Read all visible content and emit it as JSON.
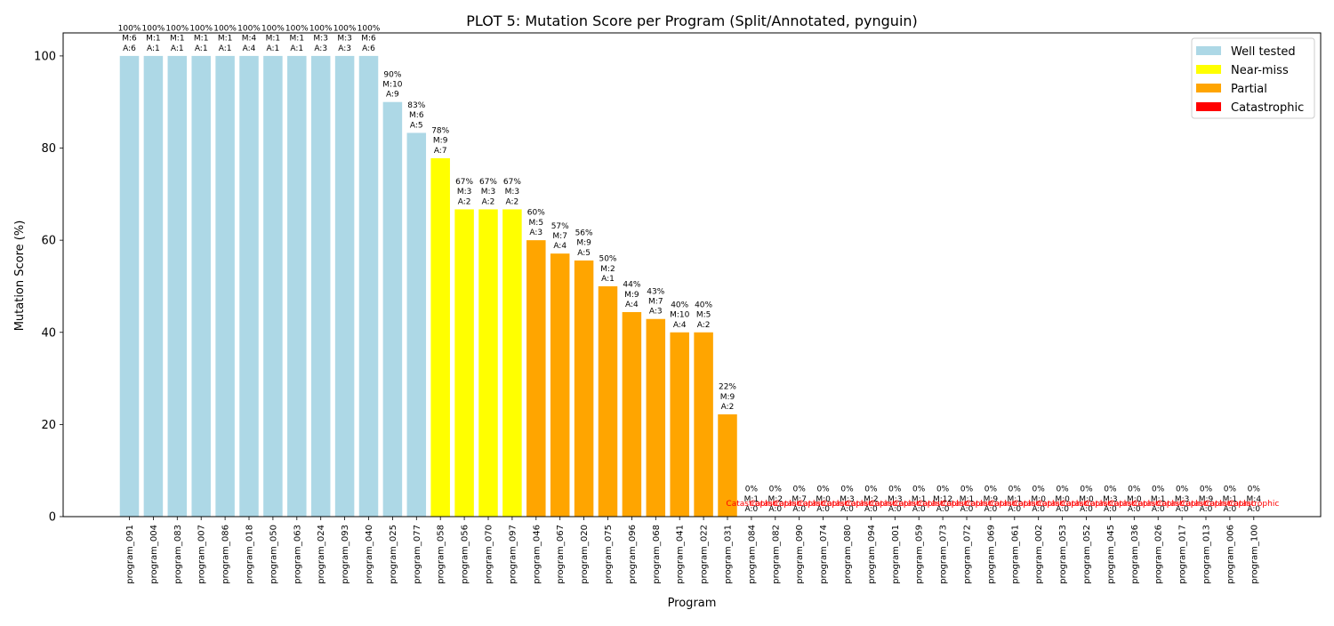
{
  "chart_data": {
    "type": "bar",
    "title": "PLOT 5: Mutation Score per Program (Split/Annotated, pynguin)",
    "xlabel": "Program",
    "ylabel": "Mutation Score (%)",
    "ylim": [
      0,
      105
    ],
    "yticks": [
      0,
      20,
      40,
      60,
      80,
      100
    ],
    "grid": false,
    "legend_position": "top-right",
    "colors": {
      "Well tested": "#add8e6",
      "Near-miss": "#ffff00",
      "Partial": "#ffa500",
      "Catastrophic": "#ff0000",
      "annotation_catastrophic": "#ff0000"
    },
    "legend": [
      "Well tested",
      "Near-miss",
      "Partial",
      "Catastrophic"
    ],
    "bars": [
      {
        "program": "program_091",
        "value": 100,
        "category": "Well tested",
        "label": [
          "100%",
          "M:6",
          "A:6"
        ]
      },
      {
        "program": "program_004",
        "value": 100,
        "category": "Well tested",
        "label": [
          "100%",
          "M:1",
          "A:1"
        ]
      },
      {
        "program": "program_083",
        "value": 100,
        "category": "Well tested",
        "label": [
          "100%",
          "M:1",
          "A:1"
        ]
      },
      {
        "program": "program_007",
        "value": 100,
        "category": "Well tested",
        "label": [
          "100%",
          "M:1",
          "A:1"
        ]
      },
      {
        "program": "program_086",
        "value": 100,
        "category": "Well tested",
        "label": [
          "100%",
          "M:1",
          "A:1"
        ]
      },
      {
        "program": "program_018",
        "value": 100,
        "category": "Well tested",
        "label": [
          "100%",
          "M:4",
          "A:4"
        ]
      },
      {
        "program": "program_050",
        "value": 100,
        "category": "Well tested",
        "label": [
          "100%",
          "M:1",
          "A:1"
        ]
      },
      {
        "program": "program_063",
        "value": 100,
        "category": "Well tested",
        "label": [
          "100%",
          "M:1",
          "A:1"
        ]
      },
      {
        "program": "program_024",
        "value": 100,
        "category": "Well tested",
        "label": [
          "100%",
          "M:3",
          "A:3"
        ]
      },
      {
        "program": "program_093",
        "value": 100,
        "category": "Well tested",
        "label": [
          "100%",
          "M:3",
          "A:3"
        ]
      },
      {
        "program": "program_040",
        "value": 100,
        "category": "Well tested",
        "label": [
          "100%",
          "M:6",
          "A:6"
        ]
      },
      {
        "program": "program_025",
        "value": 90,
        "category": "Well tested",
        "label": [
          "90%",
          "M:10",
          "A:9"
        ]
      },
      {
        "program": "program_077",
        "value": 83.3,
        "category": "Well tested",
        "label": [
          "83%",
          "M:6",
          "A:5"
        ]
      },
      {
        "program": "program_058",
        "value": 77.8,
        "category": "Near-miss",
        "label": [
          "78%",
          "M:9",
          "A:7"
        ]
      },
      {
        "program": "program_056",
        "value": 66.7,
        "category": "Near-miss",
        "label": [
          "67%",
          "M:3",
          "A:2"
        ]
      },
      {
        "program": "program_070",
        "value": 66.7,
        "category": "Near-miss",
        "label": [
          "67%",
          "M:3",
          "A:2"
        ]
      },
      {
        "program": "program_097",
        "value": 66.7,
        "category": "Near-miss",
        "label": [
          "67%",
          "M:3",
          "A:2"
        ]
      },
      {
        "program": "program_046",
        "value": 60,
        "category": "Partial",
        "label": [
          "60%",
          "M:5",
          "A:3"
        ]
      },
      {
        "program": "program_067",
        "value": 57.1,
        "category": "Partial",
        "label": [
          "57%",
          "M:7",
          "A:4"
        ]
      },
      {
        "program": "program_020",
        "value": 55.6,
        "category": "Partial",
        "label": [
          "56%",
          "M:9",
          "A:5"
        ]
      },
      {
        "program": "program_075",
        "value": 50,
        "category": "Partial",
        "label": [
          "50%",
          "M:2",
          "A:1"
        ]
      },
      {
        "program": "program_096",
        "value": 44.4,
        "category": "Partial",
        "label": [
          "44%",
          "M:9",
          "A:4"
        ]
      },
      {
        "program": "program_068",
        "value": 42.9,
        "category": "Partial",
        "label": [
          "43%",
          "M:7",
          "A:3"
        ]
      },
      {
        "program": "program_041",
        "value": 40,
        "category": "Partial",
        "label": [
          "40%",
          "M:10",
          "A:4"
        ]
      },
      {
        "program": "program_022",
        "value": 40,
        "category": "Partial",
        "label": [
          "40%",
          "M:5",
          "A:2"
        ]
      },
      {
        "program": "program_031",
        "value": 22.2,
        "category": "Partial",
        "label": [
          "22%",
          "M:9",
          "A:2"
        ]
      },
      {
        "program": "program_084",
        "value": 0,
        "category": "Catastrophic",
        "label": [
          "0%",
          "M:1",
          "A:0"
        ]
      },
      {
        "program": "program_082",
        "value": 0,
        "category": "Catastrophic",
        "label": [
          "0%",
          "M:2",
          "A:0"
        ]
      },
      {
        "program": "program_090",
        "value": 0,
        "category": "Catastrophic",
        "label": [
          "0%",
          "M:7",
          "A:0"
        ]
      },
      {
        "program": "program_074",
        "value": 0,
        "category": "Catastrophic",
        "label": [
          "0%",
          "M:0",
          "A:0"
        ]
      },
      {
        "program": "program_080",
        "value": 0,
        "category": "Catastrophic",
        "label": [
          "0%",
          "M:3",
          "A:0"
        ]
      },
      {
        "program": "program_094",
        "value": 0,
        "category": "Catastrophic",
        "label": [
          "0%",
          "M:2",
          "A:0"
        ]
      },
      {
        "program": "program_001",
        "value": 0,
        "category": "Catastrophic",
        "label": [
          "0%",
          "M:3",
          "A:0"
        ]
      },
      {
        "program": "program_059",
        "value": 0,
        "category": "Catastrophic",
        "label": [
          "0%",
          "M:1",
          "A:0"
        ]
      },
      {
        "program": "program_073",
        "value": 0,
        "category": "Catastrophic",
        "label": [
          "0%",
          "M:12",
          "A:0"
        ]
      },
      {
        "program": "program_072",
        "value": 0,
        "category": "Catastrophic",
        "label": [
          "0%",
          "M:1",
          "A:0"
        ]
      },
      {
        "program": "program_069",
        "value": 0,
        "category": "Catastrophic",
        "label": [
          "0%",
          "M:9",
          "A:0"
        ]
      },
      {
        "program": "program_061",
        "value": 0,
        "category": "Catastrophic",
        "label": [
          "0%",
          "M:1",
          "A:0"
        ]
      },
      {
        "program": "program_002",
        "value": 0,
        "category": "Catastrophic",
        "label": [
          "0%",
          "M:0",
          "A:0"
        ]
      },
      {
        "program": "program_053",
        "value": 0,
        "category": "Catastrophic",
        "label": [
          "0%",
          "M:0",
          "A:0"
        ]
      },
      {
        "program": "program_052",
        "value": 0,
        "category": "Catastrophic",
        "label": [
          "0%",
          "M:0",
          "A:0"
        ]
      },
      {
        "program": "program_045",
        "value": 0,
        "category": "Catastrophic",
        "label": [
          "0%",
          "M:3",
          "A:0"
        ]
      },
      {
        "program": "program_036",
        "value": 0,
        "category": "Catastrophic",
        "label": [
          "0%",
          "M:0",
          "A:0"
        ]
      },
      {
        "program": "program_026",
        "value": 0,
        "category": "Catastrophic",
        "label": [
          "0%",
          "M:1",
          "A:0"
        ]
      },
      {
        "program": "program_017",
        "value": 0,
        "category": "Catastrophic",
        "label": [
          "0%",
          "M:3",
          "A:0"
        ]
      },
      {
        "program": "program_013",
        "value": 0,
        "category": "Catastrophic",
        "label": [
          "0%",
          "M:9",
          "A:0"
        ]
      },
      {
        "program": "program_006",
        "value": 0,
        "category": "Catastrophic",
        "label": [
          "0%",
          "M:1",
          "A:0"
        ]
      },
      {
        "program": "program_100",
        "value": 0,
        "category": "Catastrophic",
        "label": [
          "0%",
          "M:4",
          "A:0"
        ]
      }
    ],
    "zero_annotation": "Catastrophic"
  }
}
